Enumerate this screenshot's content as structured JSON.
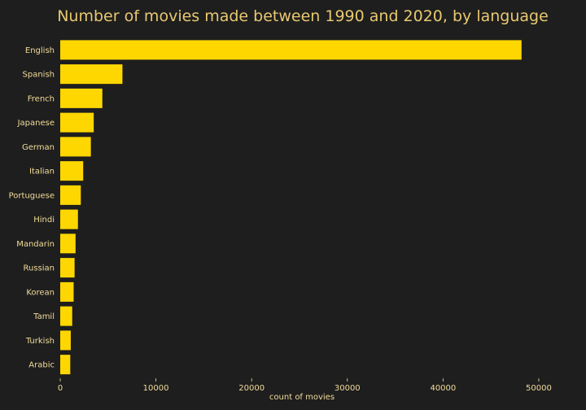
{
  "colors": {
    "background": "#1e1e1e",
    "bar": "#ffd700",
    "text": "#e8c871",
    "label": "#f2dc9a"
  },
  "chart_data": {
    "type": "bar",
    "orientation": "horizontal",
    "title": "Number of movies made between 1990 and 2020, by language",
    "xlabel": "count of movies",
    "ylabel": "",
    "categories": [
      "English",
      "Spanish",
      "French",
      "Japanese",
      "German",
      "Italian",
      "Portuguese",
      "Hindi",
      "Mandarin",
      "Russian",
      "Korean",
      "Tamil",
      "Turkish",
      "Arabic"
    ],
    "values": [
      48200,
      6500,
      4400,
      3500,
      3200,
      2400,
      2150,
      1850,
      1600,
      1500,
      1400,
      1250,
      1100,
      1050
    ],
    "xlim": [
      0,
      54000
    ],
    "xticks": [
      0,
      10000,
      20000,
      30000,
      40000,
      50000
    ],
    "grid": false,
    "legend": "none"
  }
}
